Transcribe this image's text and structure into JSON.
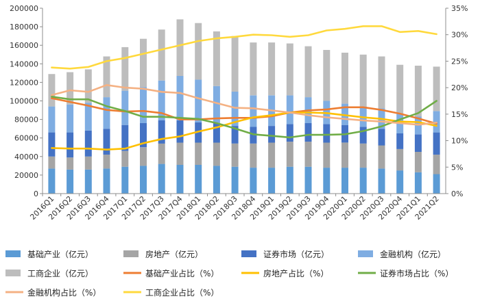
{
  "chart_data": {
    "type": "bar",
    "stacked": true,
    "categories": [
      "2016Q1",
      "2016Q2",
      "2016Q3",
      "2016Q4",
      "2017Q1",
      "2017Q2",
      "2017Q3",
      "2017Q4",
      "2018Q1",
      "2018Q2",
      "2018Q3",
      "2018Q4",
      "2019Q1",
      "2019Q2",
      "2019Q3",
      "2019Q4",
      "2020Q1",
      "2020Q2",
      "2020Q3",
      "2020Q4",
      "2021Q1",
      "2021Q2"
    ],
    "left_axis": {
      "min": 0,
      "max": 200000,
      "step": 20000,
      "ticks": [
        "0",
        "20000",
        "40000",
        "60000",
        "80000",
        "100000",
        "120000",
        "140000",
        "160000",
        "180000",
        "200000"
      ]
    },
    "right_axis": {
      "min": 0,
      "max": 35,
      "step": 5,
      "ticks": [
        "0%",
        "5%",
        "10%",
        "15%",
        "20%",
        "25%",
        "30%",
        "35%"
      ]
    },
    "grid": false,
    "legend_position": "bottom",
    "bar_series": [
      {
        "name": "基础产业（亿元）",
        "color": "#5B9BD5",
        "values": [
          27000,
          26000,
          26000,
          27000,
          29000,
          30000,
          32000,
          31000,
          31000,
          30000,
          29000,
          28000,
          28000,
          29000,
          29000,
          28000,
          28000,
          28000,
          27000,
          25000,
          23000,
          21000
        ]
      },
      {
        "name": "房地产（亿元）",
        "color": "#A5A5A5",
        "values": [
          13000,
          13000,
          14000,
          15000,
          17000,
          20000,
          22000,
          24000,
          24000,
          25000,
          25000,
          26000,
          27000,
          27000,
          27000,
          27000,
          27000,
          26000,
          25000,
          23000,
          22000,
          21000
        ]
      },
      {
        "name": "证券市场（亿元）",
        "color": "#4472C4",
        "values": [
          26000,
          27000,
          28000,
          28000,
          28000,
          26000,
          25000,
          24000,
          22000,
          21000,
          19000,
          18000,
          18000,
          19000,
          20000,
          20000,
          19000,
          18000,
          18000,
          17000,
          19000,
          24000
        ]
      },
      {
        "name": "金融机构（亿元）",
        "color": "#7FADE2",
        "values": [
          28000,
          30000,
          30000,
          34000,
          37000,
          39000,
          43000,
          48000,
          46000,
          40000,
          37000,
          34000,
          33000,
          31000,
          28000,
          25000,
          23000,
          22000,
          22000,
          21000,
          19000,
          23000
        ]
      },
      {
        "name": "工商企业（亿元）",
        "color": "#BDBDBD",
        "values": [
          35000,
          35000,
          36000,
          44000,
          47000,
          52000,
          55000,
          61000,
          61000,
          59000,
          60000,
          57000,
          57000,
          56000,
          55000,
          55000,
          55000,
          56000,
          56000,
          53000,
          55000,
          48000
        ]
      }
    ],
    "line_series": [
      {
        "name": "基础产业占比（%）",
        "color": "#ED7D31",
        "values": [
          18.0,
          17.3,
          16.6,
          15.8,
          15.5,
          15.6,
          15.2,
          14.0,
          14.0,
          14.2,
          14.3,
          14.3,
          14.6,
          15.3,
          15.7,
          15.9,
          16.3,
          16.3,
          15.8,
          15.1,
          14.2,
          13.2
        ]
      },
      {
        "name": "房地产占比（%）",
        "color": "#FFC000",
        "values": [
          8.6,
          8.5,
          8.5,
          8.3,
          8.5,
          9.5,
          10.3,
          10.8,
          11.7,
          12.5,
          13.5,
          14.4,
          14.8,
          15.3,
          15.3,
          15.2,
          14.8,
          14.4,
          14.1,
          13.6,
          13.5,
          12.8
        ]
      },
      {
        "name": "证券市场占比（%）",
        "color": "#70AD47",
        "values": [
          18.3,
          17.8,
          17.8,
          16.5,
          15.6,
          14.5,
          14.5,
          14.3,
          14.1,
          13.3,
          12.3,
          11.2,
          10.9,
          10.6,
          11.1,
          11.1,
          11.2,
          11.8,
          12.7,
          14.0,
          15.2,
          17.5
        ]
      },
      {
        "name": "金融机构占比（%）",
        "color": "#F4B183",
        "values": [
          18.6,
          19.5,
          19.2,
          20.5,
          20.0,
          19.8,
          19.2,
          19.0,
          18.0,
          17.1,
          16.2,
          16.1,
          15.7,
          15.3,
          14.8,
          14.4,
          14.1,
          13.8,
          13.6,
          13.3,
          13.0,
          13.4
        ]
      },
      {
        "name": "工商企业占比（%）",
        "color": "#FFD93D",
        "values": [
          23.8,
          23.6,
          23.9,
          25.0,
          25.6,
          26.4,
          27.2,
          28.0,
          28.8,
          29.3,
          29.6,
          30.0,
          29.9,
          29.6,
          29.9,
          30.8,
          31.1,
          31.6,
          31.6,
          30.5,
          30.7,
          30.1
        ]
      }
    ]
  }
}
